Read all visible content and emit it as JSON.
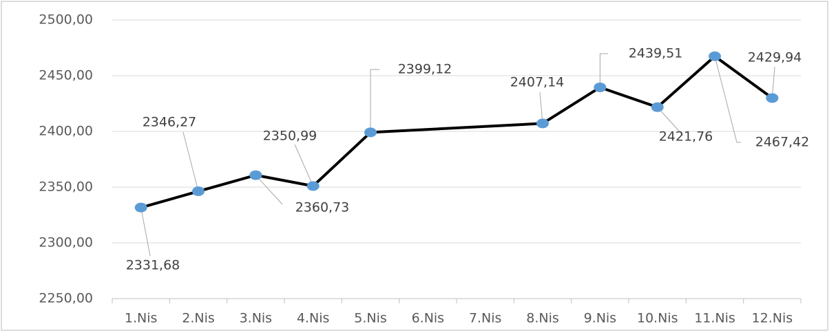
{
  "chart_data": {
    "type": "line",
    "categories": [
      "1.Nis",
      "2.Nis",
      "3.Nis",
      "4.Nis",
      "5.Nis",
      "6.Nis",
      "7.Nis",
      "8.Nis",
      "9.Nis",
      "10.Nis",
      "11.Nis",
      "12.Nis"
    ],
    "series": [
      {
        "color": "#000000",
        "marker_color": "#5b9bd5",
        "values": [
          2331.68,
          2346.27,
          2360.73,
          2350.99,
          2399.12,
          null,
          null,
          2407.14,
          2439.51,
          2421.76,
          2467.42,
          2429.94
        ],
        "value_labels": [
          "2331,68",
          "2346,27",
          "2360,73",
          "2350,99",
          "2399,12",
          null,
          null,
          "2407,14",
          "2439,51",
          "2421,76",
          "2467,42",
          "2429,94"
        ]
      }
    ],
    "ylim": [
      2250,
      2500
    ],
    "yticks": [
      {
        "value": 2250,
        "label": "2250,00"
      },
      {
        "value": 2300,
        "label": "2300,00"
      },
      {
        "value": 2350,
        "label": "2350,00"
      },
      {
        "value": 2400,
        "label": "2400,00"
      },
      {
        "value": 2450,
        "label": "2450,00"
      },
      {
        "value": 2500,
        "label": "2500,00"
      }
    ],
    "grid": true
  }
}
